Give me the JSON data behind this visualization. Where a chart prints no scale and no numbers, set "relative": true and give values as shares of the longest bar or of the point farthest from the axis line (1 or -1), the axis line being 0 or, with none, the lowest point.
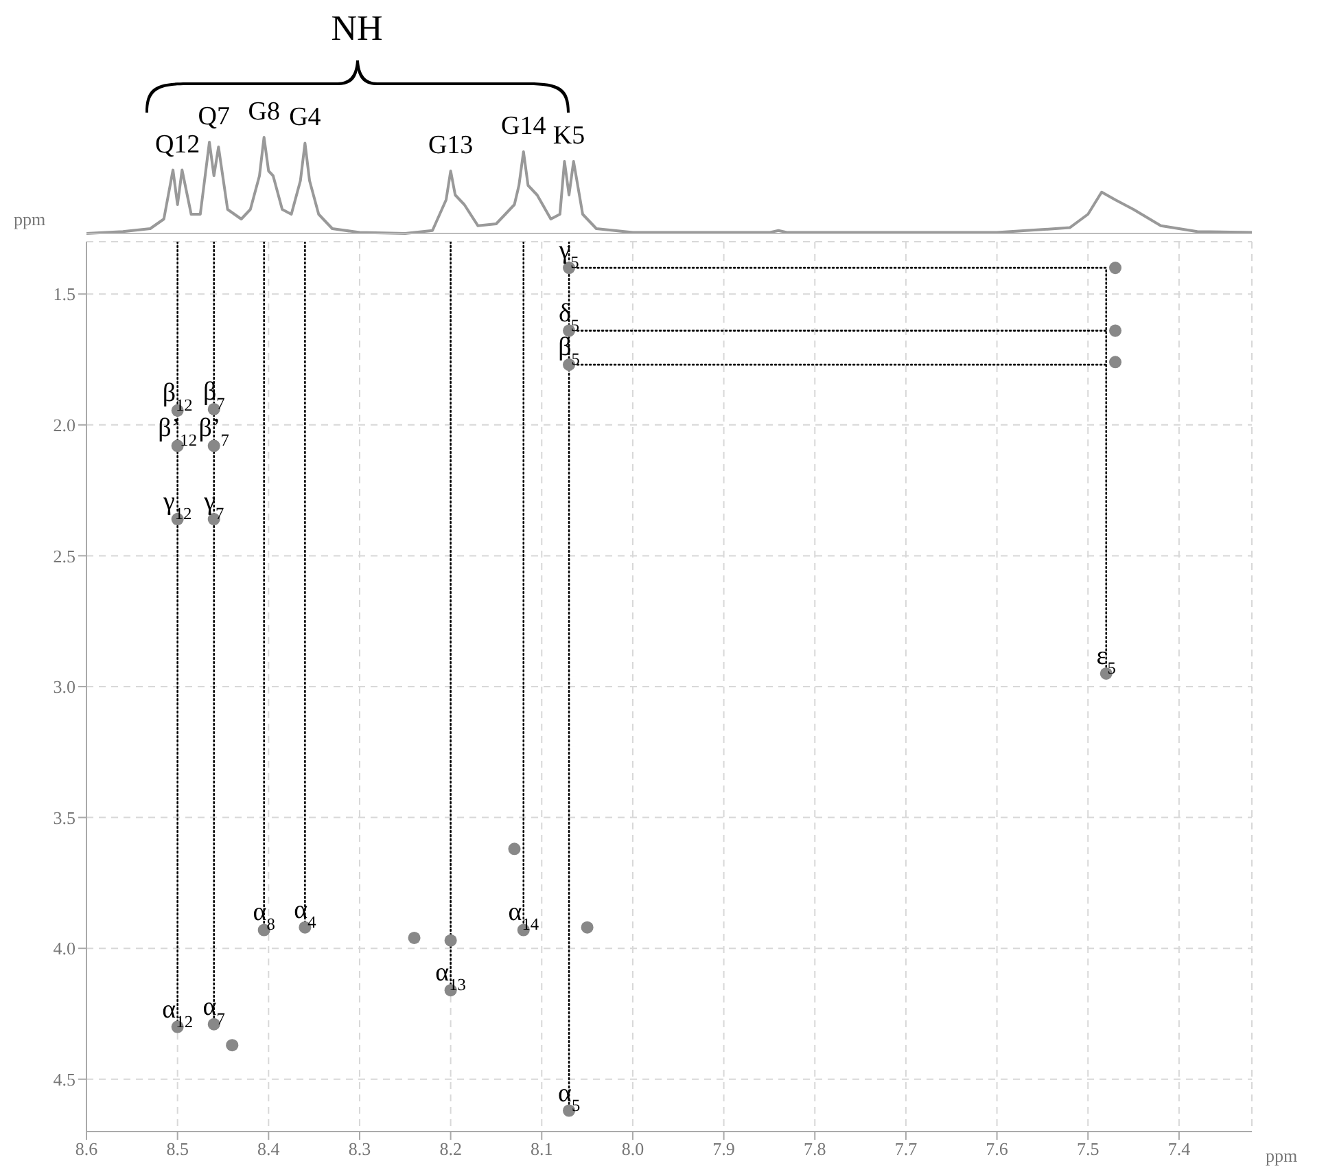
{
  "chart_data": [
    {
      "type": "line",
      "title": "NH",
      "relative": true,
      "tick_labels": false,
      "xlim": [
        8.6,
        7.32
      ],
      "color": "#999999",
      "x": [
        8.6,
        8.56,
        8.53,
        8.515,
        8.505,
        8.5,
        8.495,
        8.485,
        8.475,
        8.465,
        8.46,
        8.455,
        8.445,
        8.43,
        8.42,
        8.41,
        8.405,
        8.4,
        8.395,
        8.385,
        8.375,
        8.365,
        8.36,
        8.355,
        8.345,
        8.33,
        8.3,
        8.25,
        8.22,
        8.205,
        8.2,
        8.195,
        8.185,
        8.17,
        8.15,
        8.13,
        8.125,
        8.12,
        8.115,
        8.105,
        8.09,
        8.08,
        8.075,
        8.07,
        8.065,
        8.055,
        8.04,
        8.0,
        7.85,
        7.84,
        7.83,
        7.6,
        7.52,
        7.5,
        7.485,
        7.47,
        7.45,
        7.42,
        7.38,
        7.32
      ],
      "values": [
        0.0,
        0.02,
        0.05,
        0.15,
        0.66,
        0.3,
        0.66,
        0.2,
        0.2,
        0.95,
        0.6,
        0.9,
        0.25,
        0.15,
        0.25,
        0.6,
        1.0,
        0.65,
        0.6,
        0.25,
        0.2,
        0.55,
        0.94,
        0.55,
        0.2,
        0.05,
        0.01,
        0.0,
        0.03,
        0.35,
        0.65,
        0.4,
        0.3,
        0.08,
        0.1,
        0.3,
        0.5,
        0.85,
        0.5,
        0.4,
        0.15,
        0.2,
        0.75,
        0.4,
        0.75,
        0.2,
        0.05,
        0.01,
        0.01,
        0.03,
        0.01,
        0.01,
        0.06,
        0.2,
        0.43,
        0.35,
        0.25,
        0.08,
        0.02,
        0.01
      ],
      "annotations": [
        {
          "text": "Q12",
          "x": 8.5,
          "y": 0.66
        },
        {
          "text": "Q7",
          "x": 8.46,
          "y": 0.95
        },
        {
          "text": "G8",
          "x": 8.405,
          "y": 1.0
        },
        {
          "text": "G4",
          "x": 8.36,
          "y": 0.94
        },
        {
          "text": "G13",
          "x": 8.2,
          "y": 0.65
        },
        {
          "text": "G14",
          "x": 8.12,
          "y": 0.85
        },
        {
          "text": "K5",
          "x": 8.07,
          "y": 0.75
        }
      ]
    },
    {
      "type": "scatter",
      "xlabel": "ppm",
      "ylabel": "ppm",
      "xlim": [
        8.6,
        7.32
      ],
      "ylim": [
        4.7,
        1.3
      ],
      "grid": true,
      "xticks": [
        8.6,
        8.5,
        8.4,
        8.3,
        8.2,
        8.1,
        {
          "value": 8,
          "label": "8.0"
        },
        7.9,
        7.8,
        7.7,
        7.6,
        7.5,
        7.4
      ],
      "yticks": [
        1.5,
        {
          "value": 2,
          "label": "2.0"
        },
        2.5,
        {
          "value": 3,
          "label": "3.0"
        },
        3.5,
        {
          "value": 4,
          "label": "4.0"
        },
        4.5
      ],
      "series": [
        {
          "type": "line",
          "color": "#000000",
          "line_style": "dotted",
          "marker": "none",
          "x": [
            8.5,
            8.5
          ],
          "values": [
            1.3,
            4.3
          ]
        },
        {
          "type": "line",
          "color": "#000000",
          "line_style": "dotted",
          "x": [
            8.46,
            8.46
          ],
          "values": [
            1.3,
            4.29
          ]
        },
        {
          "type": "line",
          "color": "#000000",
          "line_style": "dotted",
          "x": [
            8.405,
            8.405
          ],
          "values": [
            1.3,
            3.93
          ]
        },
        {
          "type": "line",
          "color": "#000000",
          "line_style": "dotted",
          "x": [
            8.36,
            8.36
          ],
          "values": [
            1.3,
            3.92
          ]
        },
        {
          "type": "line",
          "color": "#000000",
          "line_style": "dotted",
          "x": [
            8.2,
            8.2
          ],
          "values": [
            1.3,
            4.16
          ]
        },
        {
          "type": "line",
          "color": "#000000",
          "line_style": "dotted",
          "x": [
            8.12,
            8.12
          ],
          "values": [
            1.3,
            3.93
          ]
        },
        {
          "type": "line",
          "color": "#000000",
          "line_style": "dotted",
          "x": [
            8.07,
            8.07
          ],
          "values": [
            1.3,
            4.62
          ]
        },
        {
          "type": "line",
          "color": "#000000",
          "line_style": "dotted",
          "x": [
            8.07,
            7.48,
            7.48
          ],
          "values": [
            1.4,
            1.4,
            2.95
          ]
        },
        {
          "type": "line",
          "color": "#000000",
          "line_style": "dotted",
          "x": [
            8.07,
            7.48
          ],
          "values": [
            1.64,
            1.64
          ]
        },
        {
          "type": "line",
          "color": "#000000",
          "line_style": "dotted",
          "x": [
            8.07,
            7.48
          ],
          "values": [
            1.77,
            1.77
          ]
        },
        {
          "type": "scatter",
          "color": "#888888",
          "marker": "circle",
          "x": [
            8.5,
            8.46,
            8.5,
            8.46,
            8.5,
            8.46,
            8.405,
            8.36,
            8.2,
            8.12,
            8.5,
            8.46,
            8.07,
            8.07,
            8.07,
            8.07,
            7.48,
            7.47,
            7.47,
            7.47,
            8.13,
            8.24,
            8.05,
            8.2,
            8.44
          ],
          "values": [
            1.945,
            1.94,
            2.08,
            2.08,
            2.36,
            2.36,
            3.93,
            3.92,
            4.16,
            3.93,
            4.3,
            4.29,
            1.4,
            1.64,
            1.77,
            4.62,
            2.95,
            1.4,
            1.64,
            1.76,
            3.62,
            3.96,
            3.92,
            3.97,
            4.37
          ]
        }
      ],
      "annotations": [
        {
          "text": "β$_{12}$",
          "x": 8.5,
          "y": 1.945
        },
        {
          "text": "β$_{7}$",
          "x": 8.46,
          "y": 1.94
        },
        {
          "text": "β’$_{12}$",
          "x": 8.5,
          "y": 2.08
        },
        {
          "text": "β’$_{7}$",
          "x": 8.46,
          "y": 2.08
        },
        {
          "text": "γ$_{12}$",
          "x": 8.5,
          "y": 2.36
        },
        {
          "text": "γ$_{7}$",
          "x": 8.46,
          "y": 2.36
        },
        {
          "text": "α$_{8}$",
          "x": 8.405,
          "y": 3.93
        },
        {
          "text": "α$_{4}$",
          "x": 8.36,
          "y": 3.92
        },
        {
          "text": "α$_{13}$",
          "x": 8.2,
          "y": 4.16
        },
        {
          "text": "α$_{14}$",
          "x": 8.12,
          "y": 3.93
        },
        {
          "text": "α$_{12}$",
          "x": 8.5,
          "y": 4.3
        },
        {
          "text": "α$_{7}$",
          "x": 8.46,
          "y": 4.29
        },
        {
          "text": "γ$_{5}$",
          "x": 8.07,
          "y": 1.4
        },
        {
          "text": "δ$_{5}$",
          "x": 8.07,
          "y": 1.64
        },
        {
          "text": "β$_{5}$",
          "x": 8.07,
          "y": 1.77
        },
        {
          "text": "α$_{5}$",
          "x": 8.07,
          "y": 4.62
        },
        {
          "text": "ε$_{5}$",
          "x": 7.48,
          "y": 2.95
        }
      ]
    }
  ]
}
